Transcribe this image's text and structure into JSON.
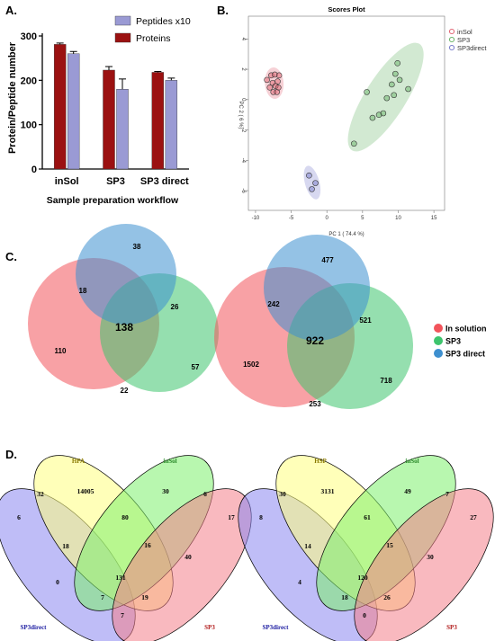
{
  "panel_labels": {
    "a": "A.",
    "b": "B.",
    "c": "C.",
    "d": "D."
  },
  "colors": {
    "proteins": "#9b1111",
    "peptides": "#9a9ad4",
    "insol": "#e05a6a",
    "sp3": "#5faf5f",
    "sp3direct": "#6f74c8",
    "venn_red": "#f2545b",
    "venn_green": "#3ec46d",
    "venn_blue": "#3d8fcf",
    "d_blue": "#8a86f0",
    "d_yellow": "#ffff80",
    "d_green": "#7ef06e",
    "d_red": "#f4808a"
  },
  "chart_data": [
    {
      "id": "bar",
      "type": "bar",
      "categories": [
        "inSol",
        "SP3",
        "SP3 direct"
      ],
      "series": [
        {
          "name": "Proteins",
          "values": [
            281,
            223,
            218
          ],
          "errors": [
            3,
            8,
            2
          ]
        },
        {
          "name": "Peptides x10",
          "values": [
            260,
            180,
            200
          ],
          "errors": [
            5,
            23,
            5
          ]
        }
      ],
      "title": "",
      "xlabel": "Sample preparation workflow",
      "ylabel": "Protein/Peptide number",
      "ylim": [
        0,
        300
      ],
      "yticks": [
        0,
        100,
        200,
        300
      ],
      "legend_order": [
        "Peptides x10",
        "Proteins"
      ],
      "legend": "top-right"
    },
    {
      "id": "pca",
      "type": "scatter",
      "title": "Scores Plot",
      "xlabel": "PC 1 ( 74.4 %)",
      "ylabel": "PC 2 ( 6 %)",
      "xlim": [
        -11,
        16.5
      ],
      "ylim": [
        -7.3,
        5.5
      ],
      "xticks": [
        -10,
        -5,
        0,
        5,
        10,
        15
      ],
      "yticks": [
        -6,
        -4,
        -2,
        0,
        2,
        4
      ],
      "legend": "top-right",
      "series": [
        {
          "name": "inSol",
          "points": [
            [
              -7.8,
              1.6
            ],
            [
              -7.3,
              1.65
            ],
            [
              -6.7,
              1.6
            ],
            [
              -8.4,
              1.3
            ],
            [
              -7.6,
              1.1
            ],
            [
              -6.9,
              1.2
            ],
            [
              -8.0,
              0.8
            ],
            [
              -7.2,
              0.9
            ],
            [
              -6.8,
              0.8
            ],
            [
              -7.5,
              0.5
            ],
            [
              -7.0,
              0.5
            ]
          ]
        },
        {
          "name": "SP3",
          "points": [
            [
              9.9,
              2.4
            ],
            [
              9.6,
              1.7
            ],
            [
              10.2,
              1.3
            ],
            [
              9.1,
              1.0
            ],
            [
              11.4,
              0.7
            ],
            [
              5.6,
              0.5
            ],
            [
              8.4,
              0.1
            ],
            [
              9.4,
              0.3
            ],
            [
              7.9,
              -0.9
            ],
            [
              7.3,
              -1.0
            ],
            [
              6.4,
              -1.2
            ],
            [
              3.8,
              -2.9
            ]
          ]
        },
        {
          "name": "SP3direct",
          "points": [
            [
              -2.5,
              -5.0
            ],
            [
              -1.6,
              -5.5
            ],
            [
              -2.1,
              -5.9
            ]
          ]
        }
      ]
    },
    {
      "id": "venn_proteins",
      "type": "venn3",
      "sets": [
        "In solution",
        "SP3",
        "SP3 direct"
      ],
      "regions": {
        "a_only": "110",
        "b_only": "57",
        "c_only": "38",
        "ab": "22",
        "ac": "18",
        "bc": "26",
        "abc": "138"
      }
    },
    {
      "id": "venn_peptides",
      "type": "venn3",
      "sets": [
        "In solution",
        "SP3",
        "SP3 direct"
      ],
      "regions": {
        "a_only": "1502",
        "b_only": "718",
        "c_only": "477",
        "ab": "253",
        "ac": "242",
        "bc": "521",
        "abc": "922"
      },
      "legend": [
        "In solution",
        "SP3",
        "SP3 direct"
      ]
    },
    {
      "id": "venn4_hpa",
      "type": "venn4",
      "sets": [
        "SP3direct",
        "HPA",
        "inSol",
        "SP3"
      ],
      "counts": [
        "6",
        "14005",
        "30",
        "17",
        "32",
        "80",
        "6",
        "18",
        "16",
        "40",
        "0",
        "131",
        "19",
        "7",
        "7"
      ]
    },
    {
      "id": "venn4_hsp",
      "type": "venn4",
      "sets": [
        "SP3direct",
        "HSP",
        "inSol",
        "SP3"
      ],
      "counts": [
        "8",
        "3131",
        "49",
        "27",
        "30",
        "61",
        "7",
        "14",
        "15",
        "30",
        "4",
        "120",
        "26",
        "18",
        "0"
      ]
    }
  ]
}
